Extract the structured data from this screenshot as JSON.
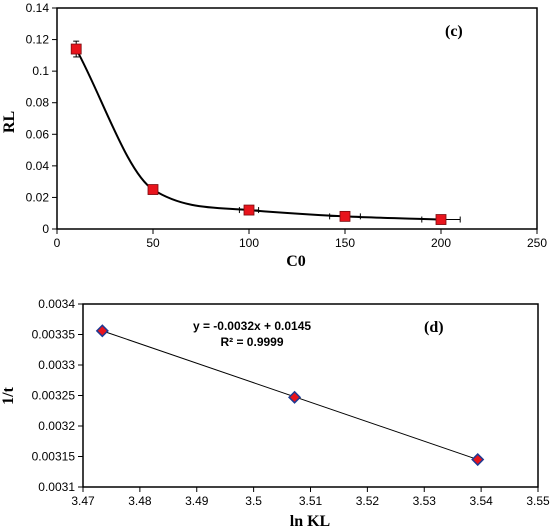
{
  "chart_data": [
    {
      "type": "scatter",
      "panel_label": "(c)",
      "xlabel": "C0",
      "ylabel": "RL",
      "xlim": [
        0,
        250
      ],
      "ylim": [
        0,
        0.14
      ],
      "xticks": [
        "0",
        "50",
        "100",
        "150",
        "200",
        "250"
      ],
      "yticks": [
        "0",
        "0.02",
        "0.04",
        "0.06",
        "0.08",
        "0.1",
        "0.12",
        "0.14"
      ],
      "grid": false,
      "marker": "square",
      "marker_color": "#e8141c",
      "line_color": "#000000",
      "line": "smooth",
      "series": [
        {
          "x": [
            10,
            50,
            100,
            150,
            200
          ],
          "y": [
            0.114,
            0.025,
            0.012,
            0.008,
            0.006
          ],
          "y_err": [
            0.005,
            0.001,
            0.001,
            0.001,
            0.001
          ],
          "x_err": [
            0,
            0,
            5,
            8,
            10
          ]
        }
      ]
    },
    {
      "type": "scatter",
      "panel_label": "(d)",
      "xlabel": "ln KL",
      "ylabel": "1/t",
      "xlim": [
        3.47,
        3.55
      ],
      "ylim": [
        0.0031,
        0.0034
      ],
      "xticks": [
        "3.47",
        "3.48",
        "3.49",
        "3.5",
        "3.51",
        "3.52",
        "3.53",
        "3.54",
        "3.55"
      ],
      "yticks": [
        "0.0031",
        "0.00315",
        "0.0032",
        "0.00325",
        "0.0033",
        "0.00335",
        "0.0034"
      ],
      "grid": false,
      "marker": "diamond",
      "marker_color": "#e8141c",
      "marker_edge": "#1f3a93",
      "line_color": "#000000",
      "line": "linear-trend",
      "annotation": [
        "y = -0.0032x + 0.0145",
        "R² = 0.9999"
      ],
      "series": [
        {
          "x": [
            3.4734,
            3.5072,
            3.5394
          ],
          "y": [
            0.003356,
            0.003247,
            0.003145
          ]
        }
      ]
    }
  ]
}
